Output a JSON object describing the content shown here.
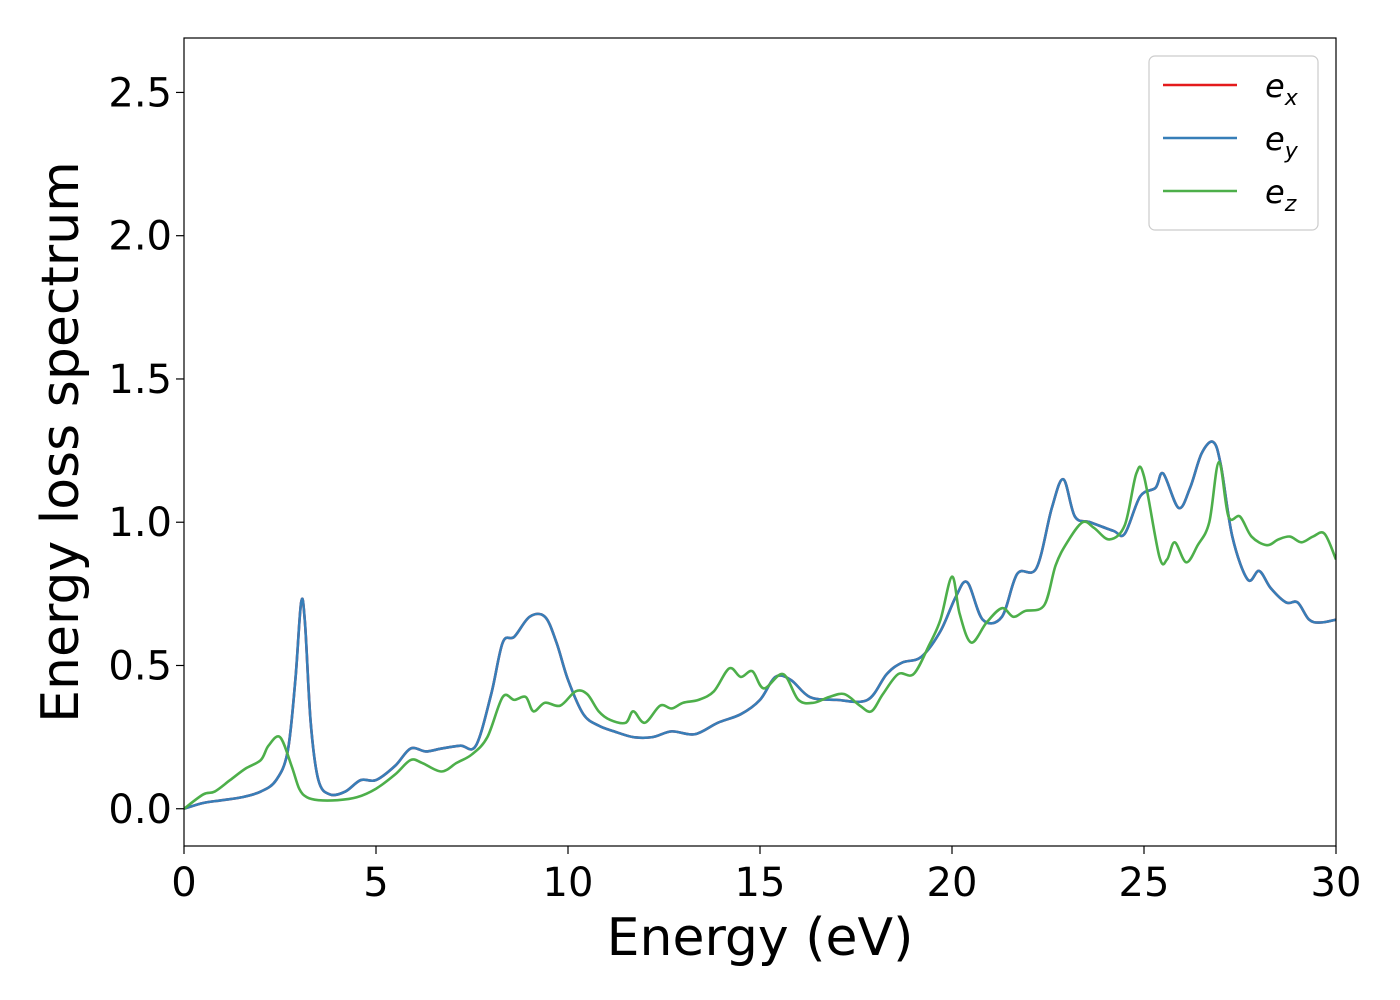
{
  "chart_data": {
    "type": "line",
    "xlabel": "Energy (eV)",
    "ylabel": "Energy loss spectrum",
    "xlim": [
      0,
      30
    ],
    "ylim": [
      -0.13,
      2.69
    ],
    "x_ticks": [
      "0",
      "5",
      "10",
      "15",
      "20",
      "25",
      "30"
    ],
    "y_ticks": [
      "0.0",
      "0.5",
      "1.0",
      "1.5",
      "2.0",
      "2.5"
    ],
    "grid": false,
    "legend": {
      "placement": "top-right",
      "entries": [
        {
          "base": "e",
          "sub": "x",
          "color": "#e41a1c"
        },
        {
          "base": "e",
          "sub": "y",
          "color": "#377eb8"
        },
        {
          "base": "e",
          "sub": "z",
          "color": "#4daf4a"
        }
      ]
    },
    "series": [
      {
        "key": "ex",
        "color": "#e41a1c",
        "x": [
          0,
          0.5,
          1.0,
          1.5,
          2.0,
          2.4,
          2.7,
          2.9,
          3.05,
          3.15,
          3.3,
          3.5,
          3.8,
          4.2,
          4.6,
          5.0,
          5.5,
          5.9,
          6.3,
          6.7,
          7.2,
          7.6,
          8.0,
          8.3,
          8.6,
          9.0,
          9.4,
          9.7,
          10.0,
          10.4,
          10.8,
          11.2,
          11.7,
          12.2,
          12.7,
          13.3,
          13.9,
          14.5,
          15.0,
          15.4,
          15.8,
          16.3,
          17.0,
          17.8,
          18.3,
          18.7,
          19.2,
          19.7,
          20.1,
          20.4,
          20.8,
          21.3,
          21.7,
          22.2,
          22.6,
          22.9,
          23.2,
          23.6,
          24.2,
          24.5,
          24.9,
          25.3,
          25.5,
          25.9,
          26.2,
          26.5,
          26.8,
          27.0,
          27.3,
          27.7,
          28.0,
          28.3,
          28.7,
          29.0,
          29.3,
          29.6,
          30.0
        ],
        "y": [
          0.0,
          0.02,
          0.03,
          0.04,
          0.06,
          0.1,
          0.2,
          0.45,
          0.72,
          0.65,
          0.3,
          0.1,
          0.05,
          0.06,
          0.1,
          0.1,
          0.15,
          0.21,
          0.2,
          0.21,
          0.22,
          0.22,
          0.4,
          0.58,
          0.6,
          0.67,
          0.67,
          0.58,
          0.45,
          0.33,
          0.29,
          0.27,
          0.25,
          0.25,
          0.27,
          0.26,
          0.3,
          0.33,
          0.38,
          0.46,
          0.45,
          0.39,
          0.38,
          0.38,
          0.47,
          0.51,
          0.53,
          0.62,
          0.74,
          0.79,
          0.66,
          0.67,
          0.82,
          0.84,
          1.05,
          1.15,
          1.02,
          1.0,
          0.97,
          0.96,
          1.09,
          1.12,
          1.17,
          1.05,
          1.12,
          1.24,
          1.28,
          1.2,
          0.95,
          0.8,
          0.83,
          0.77,
          0.72,
          0.72,
          0.66,
          0.65,
          0.66
        ]
      },
      {
        "key": "ey",
        "color": "#377eb8",
        "x": [
          0,
          0.5,
          1.0,
          1.5,
          2.0,
          2.4,
          2.7,
          2.9,
          3.05,
          3.15,
          3.3,
          3.5,
          3.8,
          4.2,
          4.6,
          5.0,
          5.5,
          5.9,
          6.3,
          6.7,
          7.2,
          7.6,
          8.0,
          8.3,
          8.6,
          9.0,
          9.4,
          9.7,
          10.0,
          10.4,
          10.8,
          11.2,
          11.7,
          12.2,
          12.7,
          13.3,
          13.9,
          14.5,
          15.0,
          15.4,
          15.8,
          16.3,
          17.0,
          17.8,
          18.3,
          18.7,
          19.2,
          19.7,
          20.1,
          20.4,
          20.8,
          21.3,
          21.7,
          22.2,
          22.6,
          22.9,
          23.2,
          23.6,
          24.2,
          24.5,
          24.9,
          25.3,
          25.5,
          25.9,
          26.2,
          26.5,
          26.8,
          27.0,
          27.3,
          27.7,
          28.0,
          28.3,
          28.7,
          29.0,
          29.3,
          29.6,
          30.0
        ],
        "y": [
          0.0,
          0.02,
          0.03,
          0.04,
          0.06,
          0.1,
          0.2,
          0.45,
          0.72,
          0.65,
          0.3,
          0.1,
          0.05,
          0.06,
          0.1,
          0.1,
          0.15,
          0.21,
          0.2,
          0.21,
          0.22,
          0.22,
          0.4,
          0.58,
          0.6,
          0.67,
          0.67,
          0.58,
          0.45,
          0.33,
          0.29,
          0.27,
          0.25,
          0.25,
          0.27,
          0.26,
          0.3,
          0.33,
          0.38,
          0.46,
          0.45,
          0.39,
          0.38,
          0.38,
          0.47,
          0.51,
          0.53,
          0.62,
          0.74,
          0.79,
          0.66,
          0.67,
          0.82,
          0.84,
          1.05,
          1.15,
          1.02,
          1.0,
          0.97,
          0.96,
          1.09,
          1.12,
          1.17,
          1.05,
          1.12,
          1.24,
          1.28,
          1.2,
          0.95,
          0.8,
          0.83,
          0.77,
          0.72,
          0.72,
          0.66,
          0.65,
          0.66
        ]
      },
      {
        "key": "ez",
        "color": "#4daf4a",
        "x": [
          0,
          0.5,
          0.8,
          1.2,
          1.6,
          2.0,
          2.2,
          2.5,
          2.8,
          3.0,
          3.2,
          3.5,
          4.0,
          4.5,
          5.0,
          5.5,
          5.9,
          6.2,
          6.7,
          7.1,
          7.5,
          7.9,
          8.3,
          8.6,
          8.9,
          9.1,
          9.4,
          9.8,
          10.2,
          10.5,
          10.8,
          11.1,
          11.5,
          11.7,
          12.0,
          12.4,
          12.7,
          13.0,
          13.4,
          13.8,
          14.2,
          14.5,
          14.8,
          15.1,
          15.6,
          16.0,
          16.4,
          16.8,
          17.2,
          17.6,
          17.9,
          18.2,
          18.6,
          19.0,
          19.4,
          19.7,
          20.0,
          20.2,
          20.5,
          20.9,
          21.3,
          21.6,
          21.9,
          22.4,
          22.7,
          23.0,
          23.4,
          23.7,
          24.1,
          24.5,
          24.8,
          25.0,
          25.4,
          25.6,
          25.8,
          26.1,
          26.4,
          26.7,
          26.95,
          27.2,
          27.5,
          27.8,
          28.2,
          28.5,
          28.8,
          29.1,
          29.4,
          29.7,
          30.0
        ],
        "y": [
          0.0,
          0.05,
          0.06,
          0.1,
          0.14,
          0.17,
          0.22,
          0.25,
          0.15,
          0.07,
          0.04,
          0.03,
          0.03,
          0.04,
          0.07,
          0.12,
          0.17,
          0.16,
          0.13,
          0.16,
          0.19,
          0.25,
          0.39,
          0.38,
          0.39,
          0.34,
          0.37,
          0.36,
          0.41,
          0.4,
          0.34,
          0.31,
          0.3,
          0.34,
          0.3,
          0.36,
          0.35,
          0.37,
          0.38,
          0.41,
          0.49,
          0.46,
          0.48,
          0.42,
          0.47,
          0.38,
          0.37,
          0.39,
          0.4,
          0.36,
          0.34,
          0.4,
          0.47,
          0.47,
          0.57,
          0.66,
          0.81,
          0.68,
          0.58,
          0.65,
          0.7,
          0.67,
          0.69,
          0.71,
          0.85,
          0.93,
          1.0,
          0.98,
          0.94,
          0.99,
          1.17,
          1.16,
          0.88,
          0.87,
          0.93,
          0.86,
          0.92,
          1.0,
          1.21,
          1.02,
          1.02,
          0.95,
          0.92,
          0.94,
          0.95,
          0.93,
          0.95,
          0.96,
          0.87
        ]
      }
    ]
  }
}
